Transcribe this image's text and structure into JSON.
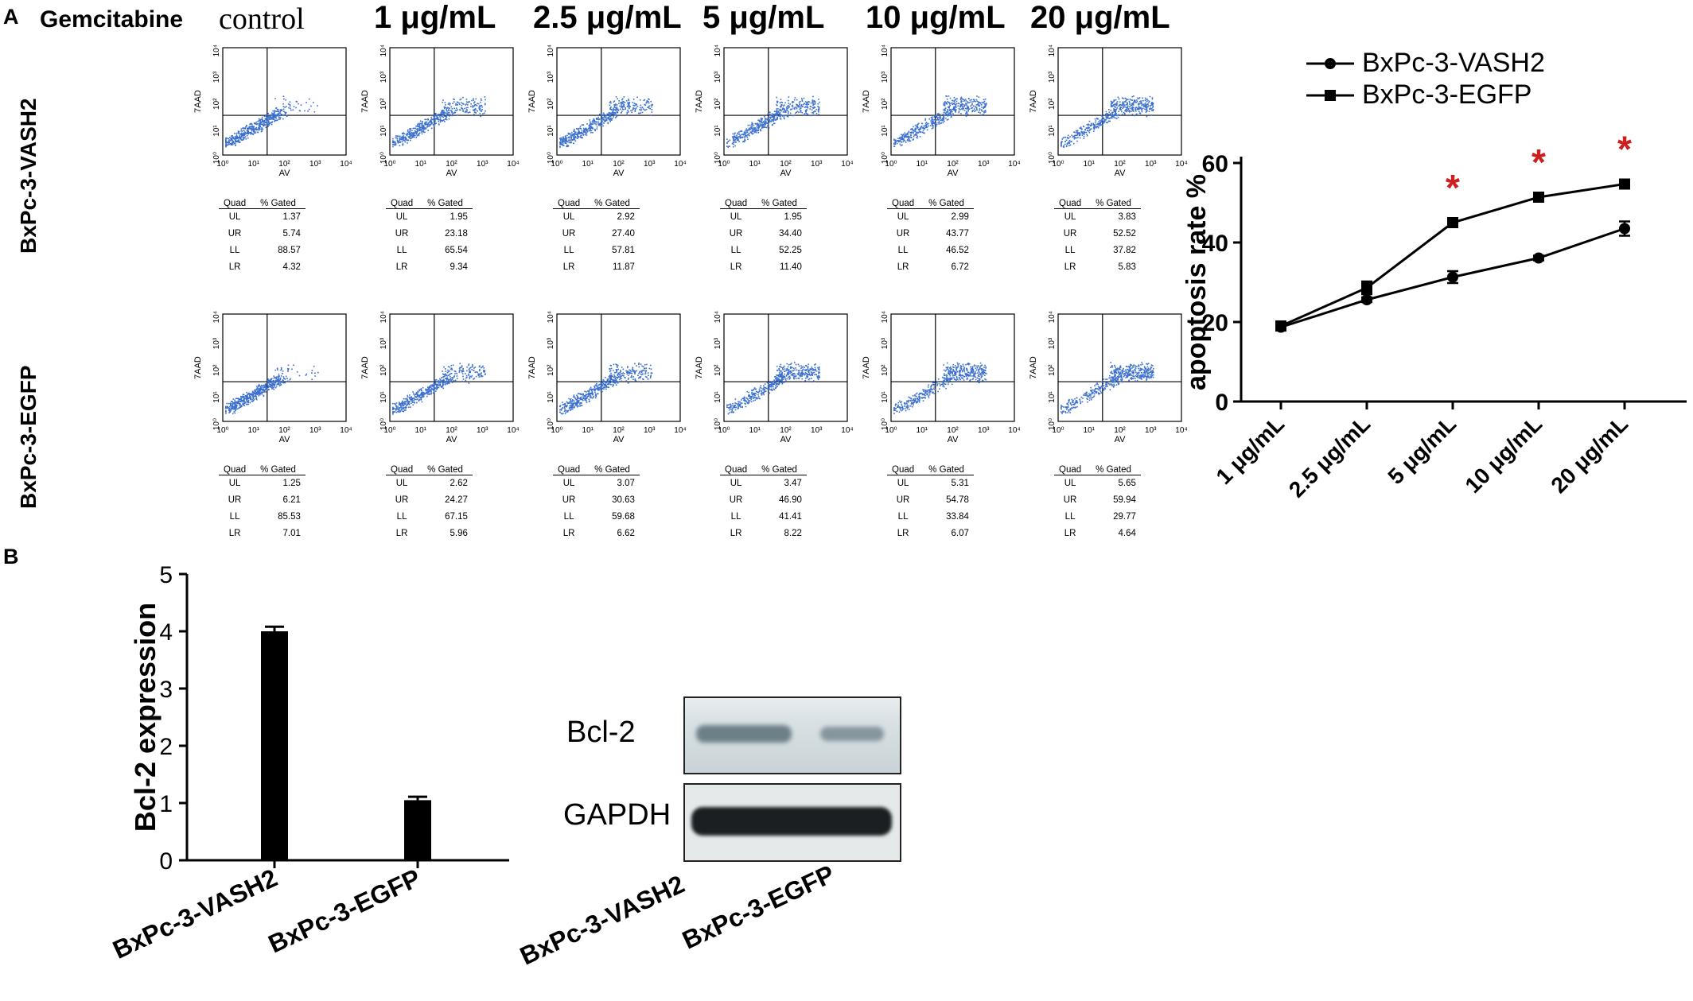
{
  "panel_a_label": "A",
  "panel_b_label": "B",
  "conditions": [
    "Gemcitabine",
    "control",
    "1 μg/mL",
    "2.5 μg/mL",
    "5 μg/mL",
    "10 μg/mL",
    "20 μg/mL"
  ],
  "row_labels": [
    "BxPc-3-VASH2",
    "BxPc-3-EGFP"
  ],
  "flow_axes": {
    "y": "7AAD",
    "x": "AV"
  },
  "flow_ticks": [
    "10⁰",
    "10¹",
    "10²",
    "10³",
    "10⁴"
  ],
  "stats_header": {
    "quad": "Quad",
    "gated": "% Gated"
  },
  "quad_labels": [
    "UL",
    "UR",
    "LL",
    "LR"
  ],
  "stats": {
    "vash2": [
      [
        "1.37",
        "5.74",
        "88.57",
        "4.32"
      ],
      [
        "1.95",
        "23.18",
        "65.54",
        "9.34"
      ],
      [
        "2.92",
        "27.40",
        "57.81",
        "11.87"
      ],
      [
        "1.95",
        "34.40",
        "52.25",
        "11.40"
      ],
      [
        "2.99",
        "43.77",
        "46.52",
        "6.72"
      ],
      [
        "3.83",
        "52.52",
        "37.82",
        "5.83"
      ]
    ],
    "egfp": [
      [
        "1.25",
        "6.21",
        "85.53",
        "7.01"
      ],
      [
        "2.62",
        "24.27",
        "67.15",
        "5.96"
      ],
      [
        "3.07",
        "30.63",
        "59.68",
        "6.62"
      ],
      [
        "3.47",
        "46.90",
        "41.41",
        "8.22"
      ],
      [
        "5.31",
        "54.78",
        "33.84",
        "6.07"
      ],
      [
        "5.65",
        "59.94",
        "29.77",
        "4.64"
      ]
    ]
  },
  "chart_data": [
    {
      "type": "line",
      "ylabel": "apoptosis rate %",
      "categories": [
        "1 μg/mL",
        "2.5 μg/mL",
        "5 μg/mL",
        "10 μg/mL",
        "20 μg/mL"
      ],
      "ylim": [
        0,
        60
      ],
      "yticks": [
        "0",
        "20",
        "40",
        "60"
      ],
      "legend_position": "top-right",
      "series": [
        {
          "name": "BxPc-3-VASH2",
          "marker": "circle",
          "values": [
            18.7,
            25.6,
            31.3,
            36.1,
            43.5
          ],
          "errors": [
            0.5,
            0.6,
            1.5,
            0.6,
            1.8
          ]
        },
        {
          "name": "BxPc-3-EGFP",
          "marker": "square",
          "values": [
            19.0,
            28.6,
            45.0,
            51.4,
            54.7
          ],
          "errors": [
            0.4,
            1.6,
            0.5,
            0.6,
            0.5
          ]
        }
      ],
      "significance": [
        {
          "category": "5 μg/mL",
          "label": "*"
        },
        {
          "category": "10 μg/mL",
          "label": "*"
        },
        {
          "category": "20 μg/mL",
          "label": "*"
        }
      ],
      "significance_color": "#cc1f1f"
    },
    {
      "type": "bar",
      "ylabel": "Bcl-2 expression",
      "categories": [
        "BxPc-3-VASH2",
        "BxPc-3-EGFP"
      ],
      "values": [
        4.0,
        1.05
      ],
      "errors": [
        0.08,
        0.06
      ],
      "ylim": [
        0,
        5
      ],
      "yticks": [
        "0",
        "1",
        "2",
        "3",
        "4",
        "5"
      ]
    }
  ],
  "western_blot": {
    "bands": [
      "Bcl-2",
      "GAPDH"
    ],
    "lanes": [
      "BxPc-3-VASH2",
      "BxPc-3-EGFP"
    ]
  },
  "colors": {
    "dots": "#3a6fcf",
    "star": "#cc1f1f",
    "ink": "#000000"
  }
}
